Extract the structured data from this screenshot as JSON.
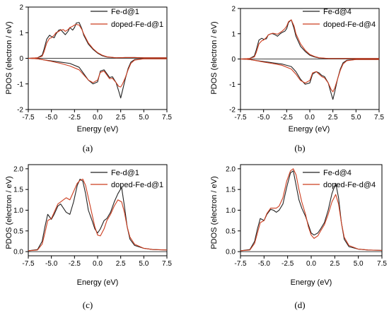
{
  "figure": {
    "panels": [
      "(a)",
      "(b)",
      "(c)",
      "(d)"
    ]
  },
  "chart_data": [
    {
      "type": "line",
      "panel_label": "(a)",
      "xlabel": "Energy (eV)",
      "ylabel": "PDOS (electron / eV)",
      "xlim": [
        -7.5,
        7.5
      ],
      "ylim": [
        -2,
        2
      ],
      "x_ticks": [
        "-7.5",
        "-5.0",
        "-2.5",
        "0.0",
        "2.5",
        "5.0",
        "7.5"
      ],
      "y_ticks": [
        "-2",
        "-1",
        "0",
        "1",
        "2"
      ],
      "legend_position": "top-right",
      "series": [
        {
          "name": "Fe-d@1",
          "color": "#222222",
          "spin_up": {
            "x": [
              -7.5,
              -6.5,
              -6.0,
              -5.8,
              -5.5,
              -5.2,
              -5.0,
              -4.7,
              -4.5,
              -4.2,
              -4.0,
              -3.7,
              -3.5,
              -3.2,
              -3.0,
              -2.7,
              -2.5,
              -2.3,
              -2.0,
              -1.7,
              -1.5,
              -1.0,
              -0.5,
              0.0,
              0.5,
              1.0,
              2.0,
              3.0,
              4.0,
              5.0,
              6.0,
              7.5
            ],
            "y": [
              0.0,
              0.02,
              0.12,
              0.35,
              0.75,
              0.9,
              0.85,
              0.8,
              0.95,
              1.1,
              1.12,
              1.0,
              0.92,
              1.05,
              1.2,
              1.1,
              1.2,
              1.38,
              1.4,
              1.15,
              0.9,
              0.55,
              0.35,
              0.2,
              0.1,
              0.05,
              0.02,
              0.03,
              0.03,
              0.02,
              0.02,
              0.02
            ]
          },
          "spin_down": {
            "x": [
              -7.5,
              -6.5,
              -6.0,
              -5.0,
              -4.0,
              -3.0,
              -2.0,
              -1.5,
              -1.0,
              -0.5,
              0.0,
              0.3,
              0.7,
              1.0,
              1.3,
              1.6,
              2.0,
              2.3,
              2.5,
              2.7,
              3.0,
              3.3,
              3.6,
              4.0,
              5.0,
              6.0,
              7.5
            ],
            "y": [
              0.0,
              -0.02,
              -0.05,
              -0.1,
              -0.15,
              -0.2,
              -0.35,
              -0.6,
              -0.85,
              -1.0,
              -0.92,
              -0.5,
              -0.45,
              -0.6,
              -0.75,
              -0.72,
              -0.95,
              -1.3,
              -1.55,
              -1.25,
              -0.8,
              -0.4,
              -0.15,
              -0.05,
              -0.02,
              -0.02,
              -0.02
            ]
          }
        },
        {
          "name": "doped-Fe-d@1",
          "color": "#cc3d1f",
          "spin_up": {
            "x": [
              -7.5,
              -6.5,
              -6.0,
              -5.8,
              -5.5,
              -5.2,
              -5.0,
              -4.7,
              -4.5,
              -4.2,
              -4.0,
              -3.7,
              -3.5,
              -3.2,
              -3.0,
              -2.7,
              -2.5,
              -2.3,
              -2.0,
              -1.7,
              -1.5,
              -1.0,
              -0.5,
              0.0,
              0.5,
              1.0,
              2.0,
              3.0,
              4.0,
              5.0,
              6.0,
              7.5
            ],
            "y": [
              0.0,
              0.02,
              0.08,
              0.25,
              0.6,
              0.78,
              0.8,
              0.9,
              1.0,
              1.05,
              1.1,
              1.12,
              1.05,
              1.12,
              1.2,
              1.25,
              1.3,
              1.32,
              1.3,
              1.12,
              0.95,
              0.6,
              0.38,
              0.22,
              0.12,
              0.06,
              0.02,
              0.03,
              0.03,
              0.02,
              0.02,
              0.02
            ]
          },
          "spin_down": {
            "x": [
              -7.5,
              -6.5,
              -6.0,
              -5.0,
              -4.0,
              -3.0,
              -2.0,
              -1.5,
              -1.0,
              -0.5,
              0.0,
              0.3,
              0.7,
              1.0,
              1.3,
              1.6,
              2.0,
              2.3,
              2.5,
              2.7,
              3.0,
              3.3,
              3.6,
              4.0,
              5.0,
              6.0,
              7.5
            ],
            "y": [
              0.0,
              -0.02,
              -0.05,
              -0.12,
              -0.2,
              -0.3,
              -0.45,
              -0.65,
              -0.85,
              -0.95,
              -0.85,
              -0.55,
              -0.5,
              -0.65,
              -0.8,
              -0.78,
              -0.95,
              -1.1,
              -1.12,
              -1.0,
              -0.75,
              -0.45,
              -0.2,
              -0.07,
              -0.02,
              -0.02,
              -0.02
            ]
          }
        }
      ]
    },
    {
      "type": "line",
      "panel_label": "(b)",
      "xlabel": "Energy (eV)",
      "ylabel": "PDOS (electron / eV)",
      "xlim": [
        -7.5,
        7.5
      ],
      "ylim": [
        -2,
        2
      ],
      "x_ticks": [
        "-7.5",
        "-5.0",
        "-2.5",
        "0.0",
        "2.5",
        "5.0",
        "7.5"
      ],
      "y_ticks": [
        "-2",
        "-1",
        "0",
        "1",
        "2"
      ],
      "legend_position": "top-right",
      "series": [
        {
          "name": "Fe-d@4",
          "color": "#222222",
          "spin_up": {
            "x": [
              -7.5,
              -6.5,
              -6.0,
              -5.8,
              -5.5,
              -5.2,
              -5.0,
              -4.7,
              -4.5,
              -4.2,
              -4.0,
              -3.7,
              -3.5,
              -3.2,
              -3.0,
              -2.7,
              -2.5,
              -2.3,
              -2.0,
              -1.7,
              -1.5,
              -1.0,
              -0.5,
              0.0,
              0.5,
              1.0,
              2.0,
              3.0,
              4.0,
              5.0,
              6.0,
              7.5
            ],
            "y": [
              0.0,
              0.02,
              0.12,
              0.35,
              0.75,
              0.82,
              0.78,
              0.8,
              0.95,
              1.0,
              1.0,
              0.95,
              0.9,
              1.0,
              1.05,
              1.1,
              1.2,
              1.45,
              1.55,
              1.2,
              0.9,
              0.5,
              0.3,
              0.15,
              0.08,
              0.04,
              0.02,
              0.02,
              0.02,
              0.02,
              0.02,
              0.02
            ]
          },
          "spin_down": {
            "x": [
              -7.5,
              -6.5,
              -6.0,
              -5.0,
              -4.0,
              -3.0,
              -2.0,
              -1.5,
              -1.0,
              -0.5,
              0.0,
              0.3,
              0.7,
              1.0,
              1.3,
              1.6,
              2.0,
              2.3,
              2.5,
              2.7,
              3.0,
              3.3,
              3.6,
              4.0,
              5.0,
              6.0,
              7.5
            ],
            "y": [
              0.0,
              -0.02,
              -0.05,
              -0.1,
              -0.15,
              -0.2,
              -0.3,
              -0.5,
              -0.8,
              -1.0,
              -0.95,
              -0.6,
              -0.5,
              -0.55,
              -0.65,
              -0.7,
              -0.95,
              -1.35,
              -1.6,
              -1.3,
              -0.8,
              -0.4,
              -0.15,
              -0.05,
              -0.02,
              -0.02,
              -0.02
            ]
          }
        },
        {
          "name": "doped-Fe-d@4",
          "color": "#cc3d1f",
          "spin_up": {
            "x": [
              -7.5,
              -6.5,
              -6.0,
              -5.8,
              -5.5,
              -5.2,
              -5.0,
              -4.7,
              -4.5,
              -4.2,
              -4.0,
              -3.7,
              -3.5,
              -3.2,
              -3.0,
              -2.7,
              -2.5,
              -2.3,
              -2.0,
              -1.7,
              -1.5,
              -1.0,
              -0.5,
              0.0,
              0.5,
              1.0,
              2.0,
              3.0,
              4.0,
              5.0,
              6.0,
              7.5
            ],
            "y": [
              0.0,
              0.02,
              0.08,
              0.25,
              0.6,
              0.72,
              0.75,
              0.85,
              0.95,
              1.0,
              1.02,
              1.0,
              0.98,
              1.05,
              1.1,
              1.2,
              1.3,
              1.48,
              1.55,
              1.3,
              1.0,
              0.6,
              0.35,
              0.18,
              0.1,
              0.05,
              0.02,
              0.02,
              0.02,
              0.02,
              0.02,
              0.02
            ]
          },
          "spin_down": {
            "x": [
              -7.5,
              -6.5,
              -6.0,
              -5.0,
              -4.0,
              -3.0,
              -2.0,
              -1.5,
              -1.0,
              -0.5,
              0.0,
              0.3,
              0.7,
              1.0,
              1.3,
              1.6,
              2.0,
              2.3,
              2.5,
              2.7,
              3.0,
              3.3,
              3.6,
              4.0,
              5.0,
              6.0,
              7.5
            ],
            "y": [
              0.0,
              -0.02,
              -0.05,
              -0.12,
              -0.18,
              -0.25,
              -0.4,
              -0.6,
              -0.85,
              -0.95,
              -0.85,
              -0.55,
              -0.5,
              -0.6,
              -0.7,
              -0.75,
              -0.95,
              -1.2,
              -1.3,
              -1.15,
              -0.8,
              -0.45,
              -0.2,
              -0.07,
              -0.02,
              -0.02,
              -0.02
            ]
          }
        }
      ]
    },
    {
      "type": "line",
      "panel_label": "(c)",
      "xlabel": "Energy (eV)",
      "ylabel": "PDOS (electron / eV)",
      "xlim": [
        -7.5,
        7.5
      ],
      "ylim": [
        -0.1,
        2.1
      ],
      "x_ticks": [
        "-7.5",
        "-5.0",
        "-2.5",
        "0.0",
        "2.5",
        "5.0",
        "7.5"
      ],
      "y_ticks": [
        "0.0",
        "0.5",
        "1.0",
        "1.5",
        "2.0"
      ],
      "legend_position": "top-right",
      "series": [
        {
          "name": "Fe-d@1",
          "color": "#222222",
          "x": [
            -7.5,
            -6.5,
            -6.0,
            -5.7,
            -5.4,
            -5.0,
            -4.7,
            -4.3,
            -4.0,
            -3.7,
            -3.4,
            -3.0,
            -2.6,
            -2.2,
            -1.9,
            -1.6,
            -1.3,
            -1.0,
            -0.6,
            -0.3,
            0.0,
            0.3,
            0.7,
            1.0,
            1.4,
            1.8,
            2.2,
            2.6,
            2.9,
            3.2,
            3.5,
            4.0,
            5.0,
            6.0,
            7.5
          ],
          "y": [
            0.02,
            0.05,
            0.25,
            0.6,
            0.9,
            0.78,
            0.9,
            1.1,
            1.15,
            1.05,
            0.95,
            0.9,
            1.2,
            1.6,
            1.75,
            1.7,
            1.4,
            1.0,
            0.75,
            0.55,
            0.45,
            0.55,
            0.75,
            0.8,
            0.95,
            1.2,
            1.4,
            1.55,
            1.1,
            0.6,
            0.3,
            0.15,
            0.08,
            0.05,
            0.04
          ]
        },
        {
          "name": "doped-Fe-d@1",
          "color": "#cc3d1f",
          "x": [
            -7.5,
            -6.5,
            -6.0,
            -5.7,
            -5.4,
            -5.0,
            -4.7,
            -4.3,
            -4.0,
            -3.7,
            -3.4,
            -3.0,
            -2.6,
            -2.2,
            -1.9,
            -1.6,
            -1.3,
            -1.0,
            -0.6,
            -0.3,
            0.0,
            0.3,
            0.7,
            1.0,
            1.4,
            1.8,
            2.2,
            2.6,
            2.9,
            3.2,
            3.5,
            4.0,
            5.0,
            6.0,
            7.5
          ],
          "y": [
            0.02,
            0.04,
            0.18,
            0.45,
            0.75,
            0.8,
            0.95,
            1.15,
            1.2,
            1.25,
            1.3,
            1.25,
            1.45,
            1.65,
            1.72,
            1.75,
            1.6,
            1.3,
            0.9,
            0.6,
            0.4,
            0.38,
            0.55,
            0.75,
            0.9,
            1.1,
            1.25,
            1.2,
            0.95,
            0.6,
            0.35,
            0.18,
            0.08,
            0.05,
            0.04
          ]
        }
      ]
    },
    {
      "type": "line",
      "panel_label": "(d)",
      "xlabel": "Energy (eV)",
      "ylabel": "PDOS (electron / eV)",
      "xlim": [
        -7.5,
        7.5
      ],
      "ylim": [
        -0.1,
        2.1
      ],
      "x_ticks": [
        "-7.5",
        "-5.0",
        "-2.5",
        "0.0",
        "2.5",
        "5.0",
        "7.5"
      ],
      "y_ticks": [
        "0.0",
        "0.5",
        "1.0",
        "1.5",
        "2.0"
      ],
      "legend_position": "top-right",
      "series": [
        {
          "name": "Fe-d@4",
          "color": "#222222",
          "x": [
            -7.5,
            -6.5,
            -6.0,
            -5.7,
            -5.4,
            -5.0,
            -4.7,
            -4.3,
            -4.0,
            -3.7,
            -3.4,
            -3.0,
            -2.6,
            -2.2,
            -1.9,
            -1.6,
            -1.3,
            -1.0,
            -0.6,
            -0.3,
            0.0,
            0.3,
            0.7,
            1.0,
            1.4,
            1.8,
            2.2,
            2.6,
            2.9,
            3.2,
            3.5,
            4.0,
            5.0,
            6.0,
            7.5
          ],
          "y": [
            0.02,
            0.05,
            0.25,
            0.55,
            0.8,
            0.75,
            0.9,
            1.02,
            1.0,
            0.95,
            1.0,
            1.15,
            1.55,
            1.9,
            1.95,
            1.6,
            1.25,
            1.05,
            0.85,
            0.65,
            0.45,
            0.4,
            0.45,
            0.55,
            0.7,
            1.0,
            1.4,
            1.65,
            1.3,
            0.7,
            0.3,
            0.12,
            0.06,
            0.04,
            0.03
          ]
        },
        {
          "name": "doped-Fe-d@4",
          "color": "#cc3d1f",
          "x": [
            -7.5,
            -6.5,
            -6.0,
            -5.7,
            -5.4,
            -5.0,
            -4.7,
            -4.3,
            -4.0,
            -3.7,
            -3.4,
            -3.0,
            -2.6,
            -2.2,
            -1.9,
            -1.6,
            -1.3,
            -1.0,
            -0.6,
            -0.3,
            0.0,
            0.3,
            0.7,
            1.0,
            1.4,
            1.8,
            2.2,
            2.6,
            2.9,
            3.2,
            3.5,
            4.0,
            5.0,
            6.0,
            7.5
          ],
          "y": [
            0.02,
            0.04,
            0.2,
            0.45,
            0.7,
            0.75,
            0.92,
            1.05,
            1.05,
            1.05,
            1.1,
            1.3,
            1.7,
            1.95,
            2.0,
            1.85,
            1.5,
            1.2,
            0.9,
            0.6,
            0.4,
            0.32,
            0.38,
            0.5,
            0.65,
            0.9,
            1.2,
            1.38,
            1.15,
            0.7,
            0.35,
            0.15,
            0.06,
            0.04,
            0.03
          ]
        }
      ]
    }
  ]
}
